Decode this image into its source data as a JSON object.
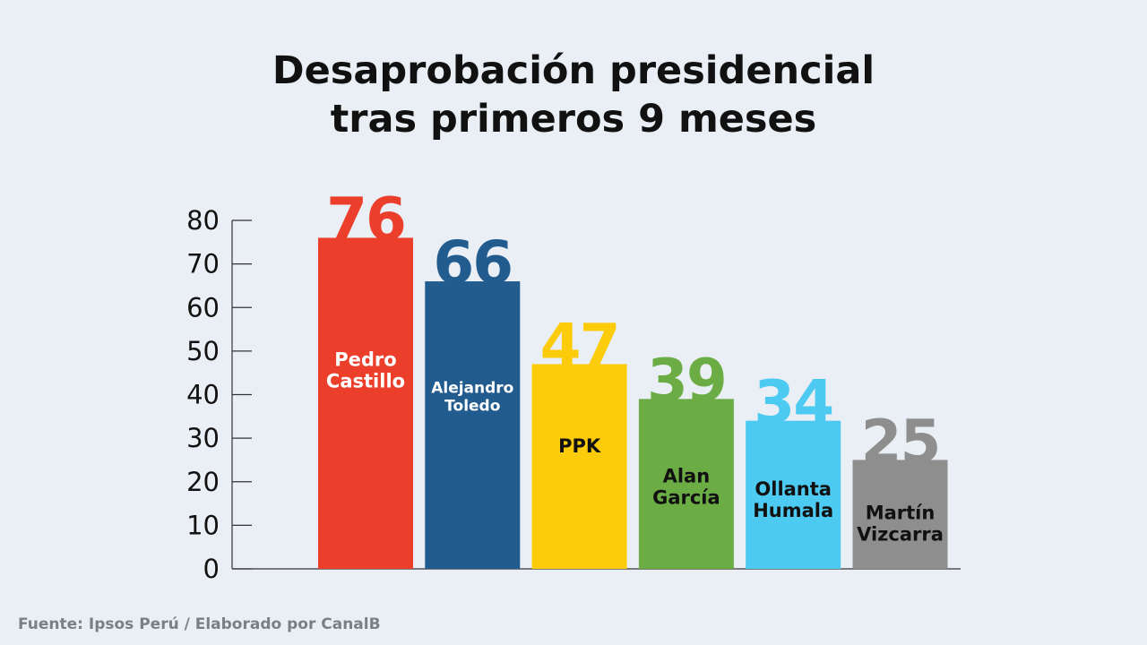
{
  "title_lines": [
    "Desaprobación presidencial",
    "tras primeros 9 meses"
  ],
  "source": "Fuente: Ipsos Perú / Elaborado por CanalB",
  "chart_data": {
    "type": "bar",
    "title": "Desaprobación presidencial tras primeros 9 meses",
    "xlabel": "",
    "ylabel": "",
    "ylim": [
      0,
      80
    ],
    "yticks": [
      0,
      10,
      20,
      30,
      40,
      50,
      60,
      70,
      80
    ],
    "grid": false,
    "categories": [
      [
        "Pedro",
        "Castillo"
      ],
      [
        "Alejandro",
        "Toledo"
      ],
      [
        "PPK"
      ],
      [
        "Alan",
        "García"
      ],
      [
        "Ollanta",
        "Humala"
      ],
      [
        "Martín",
        "Vizcarra"
      ]
    ],
    "values": [
      76,
      66,
      47,
      39,
      34,
      25
    ],
    "bar_colors": [
      "#ec3f2b",
      "#225c8f",
      "#fccb0a",
      "#6cac45",
      "#4ccaf2",
      "#8e8e8e"
    ],
    "value_label_colors": [
      "#ec3f2b",
      "#225c8f",
      "#fccb0a",
      "#6cac45",
      "#4ccaf2",
      "#8e8e8e"
    ],
    "category_label_colors": [
      "#ffffff",
      "#ffffff",
      "#111111",
      "#111111",
      "#111111",
      "#111111"
    ]
  }
}
